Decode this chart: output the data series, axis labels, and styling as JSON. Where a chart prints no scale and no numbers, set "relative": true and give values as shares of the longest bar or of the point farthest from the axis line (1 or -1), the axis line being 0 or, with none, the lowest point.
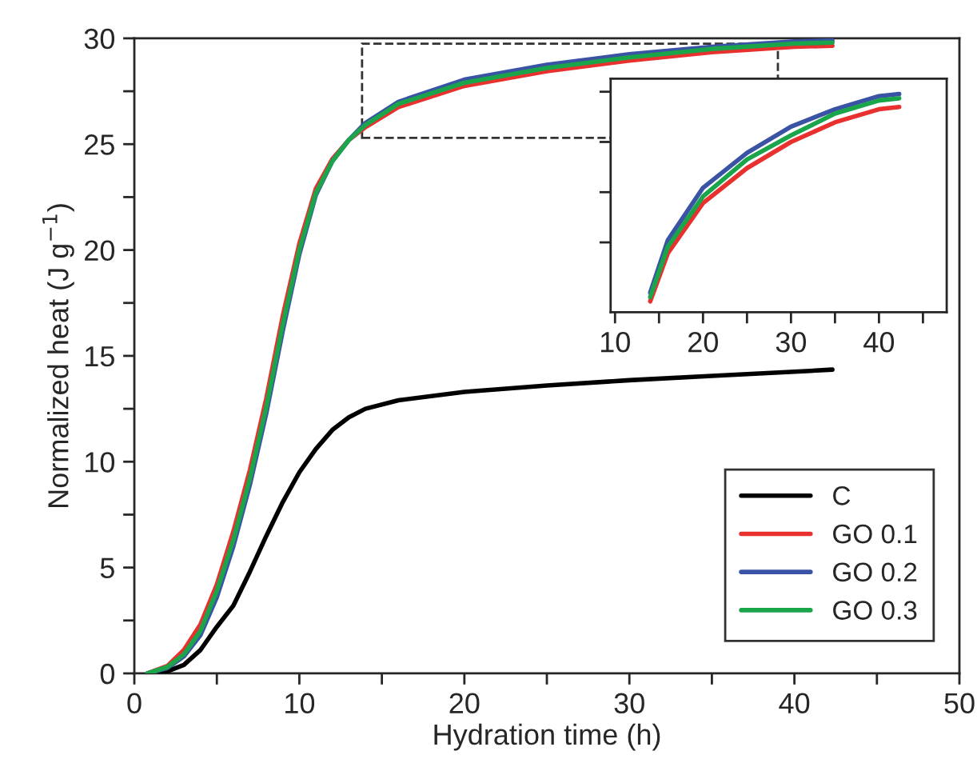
{
  "chart_data": [
    {
      "type": "line",
      "xlabel": "Hydration time (h)",
      "ylabel": "Normalized heat (J g$^{−1}$)",
      "legend": "bottom right",
      "grid": false,
      "line_style": "solid",
      "marker": "none",
      "xlim": [
        0,
        50
      ],
      "xticks": [
        0,
        {
          "value": 5,
          "label": null
        },
        10,
        {
          "value": 15,
          "label": null
        },
        20,
        {
          "value": 25,
          "label": null
        },
        30,
        {
          "value": 35,
          "label": null
        },
        40,
        {
          "value": 45,
          "label": null
        },
        50
      ],
      "ylim": [
        0,
        30
      ],
      "yticks": [
        0,
        {
          "value": 2.5,
          "label": null
        },
        5,
        {
          "value": 7.5,
          "label": null
        },
        10,
        {
          "value": 12.5,
          "label": null
        },
        15,
        {
          "value": 17.5,
          "label": null
        },
        20,
        {
          "value": 22.5,
          "label": null
        },
        25,
        {
          "value": 27.5,
          "label": null
        },
        30
      ],
      "x": [
        0.8,
        2,
        3,
        4,
        5,
        6,
        7,
        8,
        9,
        10,
        11,
        12,
        13,
        14,
        16,
        20,
        25,
        30,
        35,
        40,
        42.3
      ],
      "series": [
        {
          "name": "C",
          "color": "#000000",
          "values": [
            0,
            0.1,
            0.4,
            1.1,
            2.2,
            3.2,
            4.8,
            6.5,
            8.1,
            9.5,
            10.6,
            11.5,
            12.1,
            12.5,
            12.9,
            13.3,
            13.6,
            13.85,
            14.05,
            14.25,
            14.35
          ]
        },
        {
          "name": "GO 0.1",
          "color": "#e8312f",
          "values": [
            0,
            0.35,
            1.1,
            2.3,
            4.2,
            6.7,
            9.6,
            13.0,
            16.9,
            20.3,
            22.9,
            24.3,
            25.2,
            25.8,
            26.75,
            27.75,
            28.45,
            28.95,
            29.35,
            29.6,
            29.65
          ]
        },
        {
          "name": "GO 0.2",
          "color": "#3a53a4",
          "values": [
            0,
            0.25,
            0.8,
            1.8,
            3.6,
            6.0,
            8.9,
            12.3,
            16.2,
            19.8,
            22.6,
            24.2,
            25.2,
            26.0,
            27.0,
            28.05,
            28.75,
            29.25,
            29.6,
            29.85,
            29.9
          ]
        },
        {
          "name": "GO 0.3",
          "color": "#1aa54b",
          "values": [
            0,
            0.3,
            0.9,
            2.0,
            3.9,
            6.3,
            9.2,
            12.6,
            16.5,
            20.0,
            22.7,
            24.2,
            25.2,
            25.9,
            26.9,
            27.9,
            28.6,
            29.1,
            29.5,
            29.75,
            29.8
          ]
        }
      ]
    },
    {
      "type": "line",
      "tick_labels": "x",
      "grid": false,
      "line_style": "solid",
      "marker": "none",
      "xlim": [
        9.5,
        47.7
      ],
      "xticks": [
        10,
        {
          "value": 15,
          "label": null
        },
        20,
        {
          "value": 25,
          "label": null
        },
        30,
        {
          "value": 35,
          "label": null
        },
        40,
        {
          "value": 45,
          "label": null
        }
      ],
      "relative": true,
      "x": [
        14,
        16,
        20,
        25,
        30,
        35,
        40,
        42.3
      ],
      "series": [
        {
          "color": "#e8312f",
          "values": [
            0.05,
            0.27,
            0.5,
            0.66,
            0.78,
            0.87,
            0.93,
            0.94
          ]
        },
        {
          "color": "#3a53a4",
          "values": [
            0.09,
            0.33,
            0.57,
            0.73,
            0.85,
            0.93,
            0.99,
            1.0
          ]
        },
        {
          "color": "#1aa54b",
          "values": [
            0.07,
            0.3,
            0.53,
            0.7,
            0.81,
            0.91,
            0.97,
            0.98
          ]
        }
      ]
    }
  ]
}
